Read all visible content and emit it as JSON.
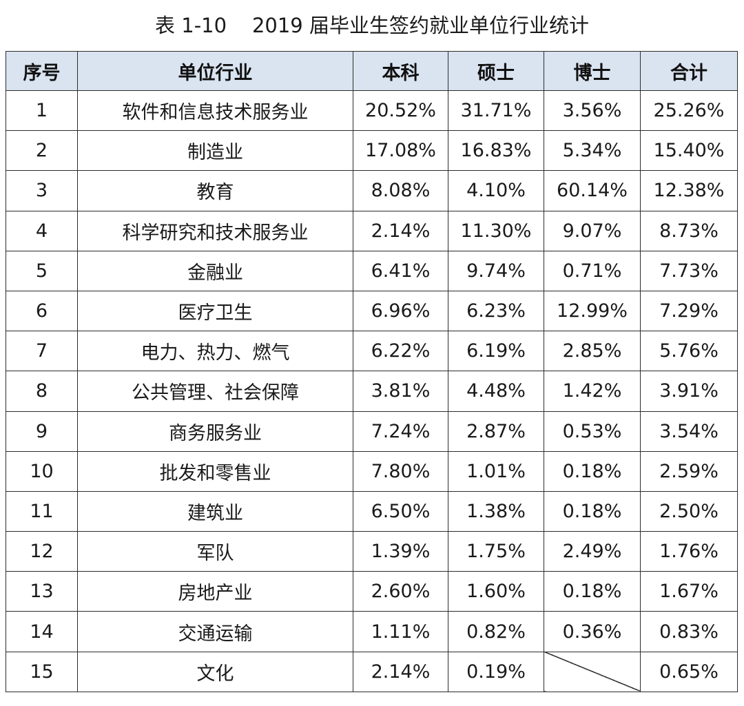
{
  "caption": "表 1-10    2019 届毕业生签约就业单位行业统计",
  "headers": [
    "序号",
    "单位行业",
    "本科",
    "硕士",
    "博士",
    "合计"
  ],
  "rows": [
    {
      "no": "1",
      "industry": "软件和信息技术服务业",
      "bachelor": "20.52%",
      "master": "31.71%",
      "doctor": "3.56%",
      "total": "25.26%"
    },
    {
      "no": "2",
      "industry": "制造业",
      "bachelor": "17.08%",
      "master": "16.83%",
      "doctor": "5.34%",
      "total": "15.40%"
    },
    {
      "no": "3",
      "industry": "教育",
      "bachelor": "8.08%",
      "master": "4.10%",
      "doctor": "60.14%",
      "total": "12.38%"
    },
    {
      "no": "4",
      "industry": "科学研究和技术服务业",
      "bachelor": "2.14%",
      "master": "11.30%",
      "doctor": "9.07%",
      "total": "8.73%"
    },
    {
      "no": "5",
      "industry": "金融业",
      "bachelor": "6.41%",
      "master": "9.74%",
      "doctor": "0.71%",
      "total": "7.73%"
    },
    {
      "no": "6",
      "industry": "医疗卫生",
      "bachelor": "6.96%",
      "master": "6.23%",
      "doctor": "12.99%",
      "total": "7.29%"
    },
    {
      "no": "7",
      "industry": "电力、热力、燃气",
      "bachelor": "6.22%",
      "master": "6.19%",
      "doctor": "2.85%",
      "total": "5.76%"
    },
    {
      "no": "8",
      "industry": "公共管理、社会保障",
      "bachelor": "3.81%",
      "master": "4.48%",
      "doctor": "1.42%",
      "total": "3.91%"
    },
    {
      "no": "9",
      "industry": "商务服务业",
      "bachelor": "7.24%",
      "master": "2.87%",
      "doctor": "0.53%",
      "total": "3.54%"
    },
    {
      "no": "10",
      "industry": "批发和零售业",
      "bachelor": "7.80%",
      "master": "1.01%",
      "doctor": "0.18%",
      "total": "2.59%"
    },
    {
      "no": "11",
      "industry": "建筑业",
      "bachelor": "6.50%",
      "master": "1.38%",
      "doctor": "0.18%",
      "total": "2.50%"
    },
    {
      "no": "12",
      "industry": "军队",
      "bachelor": "1.39%",
      "master": "1.75%",
      "doctor": "2.49%",
      "total": "1.76%"
    },
    {
      "no": "13",
      "industry": "房地产业",
      "bachelor": "2.60%",
      "master": "1.60%",
      "doctor": "0.18%",
      "total": "1.67%"
    },
    {
      "no": "14",
      "industry": "交通运输",
      "bachelor": "1.11%",
      "master": "0.82%",
      "doctor": "0.36%",
      "total": "0.83%"
    },
    {
      "no": "15",
      "industry": "文化",
      "bachelor": "2.14%",
      "master": "0.19%",
      "doctor": null,
      "total": "0.65%"
    }
  ],
  "colors": {
    "header_background": "#dae3f0",
    "border": "#2b2b2b",
    "text": "#1a1a1a"
  }
}
